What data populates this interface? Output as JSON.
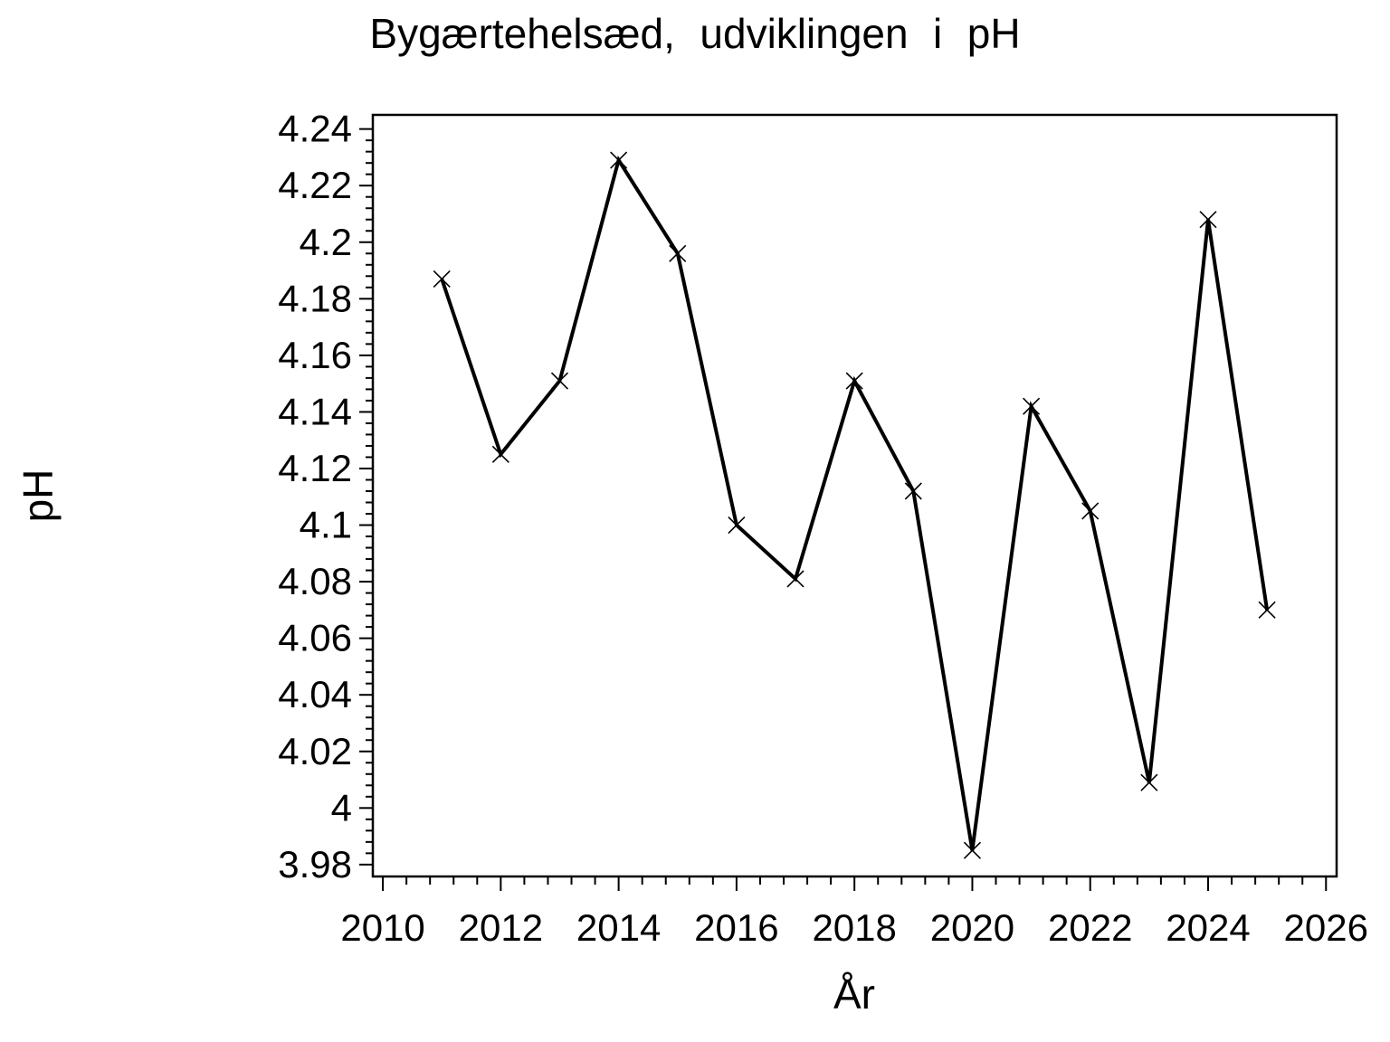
{
  "figure": {
    "title": "Bygærtehelsæd, udviklingen i pH",
    "x_axis_label": "År",
    "y_axis_label": "pH"
  },
  "chart_data": {
    "type": "line",
    "title": "Bygærtehelsæd, udviklingen i pH",
    "xlabel": "År",
    "ylabel": "pH",
    "series": [
      {
        "name": "pH",
        "x": [
          2011,
          2012,
          2013,
          2014,
          2015,
          2016,
          2017,
          2018,
          2019,
          2020,
          2021,
          2022,
          2023,
          2024,
          2025
        ],
        "values": [
          4.187,
          4.125,
          4.151,
          4.229,
          4.196,
          4.1,
          4.081,
          4.151,
          4.112,
          3.985,
          4.142,
          4.105,
          4.009,
          4.208,
          4.07
        ]
      }
    ],
    "marker": "x",
    "line_color": "#000000",
    "background_color": "#ffffff",
    "xlim": [
      2009.83,
      2026.18
    ],
    "ylim": [
      3.9758,
      4.245
    ],
    "x_major_ticks": [
      2010,
      2012,
      2014,
      2016,
      2018,
      2020,
      2022,
      2024,
      2026
    ],
    "x_tick_labels": [
      "2010",
      "2012",
      "2014",
      "2016",
      "2018",
      "2020",
      "2022",
      "2024",
      "2026"
    ],
    "x_minor_divisions": 5,
    "y_major_ticks": [
      3.98,
      4.0,
      4.02,
      4.04,
      4.06,
      4.08,
      4.1,
      4.12,
      4.14,
      4.16,
      4.18,
      4.2,
      4.22,
      4.24
    ],
    "y_tick_labels": [
      "3.98",
      "4",
      "4.02",
      "4.04",
      "4.06",
      "4.08",
      "4.1",
      "4.12",
      "4.14",
      "4.16",
      "4.18",
      "4.2",
      "4.22",
      "4.24"
    ],
    "y_minor_divisions": 5,
    "grid": false,
    "legend_position": "none"
  }
}
